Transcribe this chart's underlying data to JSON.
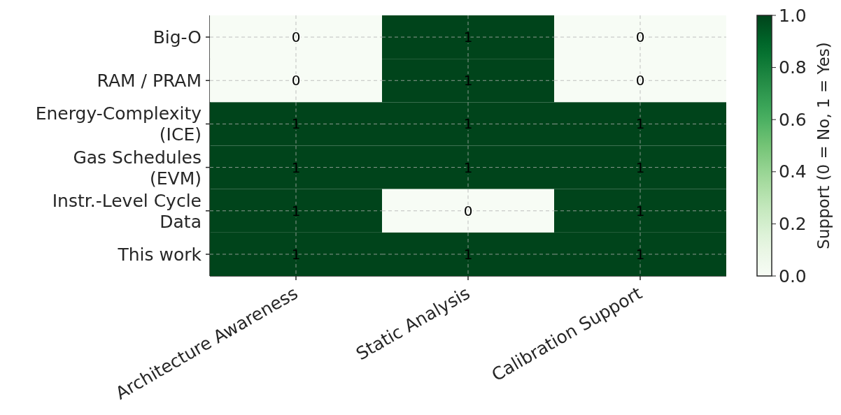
{
  "chart_data": {
    "type": "heatmap",
    "categories": [
      "Architecture Awareness",
      "Static Analysis",
      "Calibration Support"
    ],
    "y_categories": [
      "Big-O",
      "RAM / PRAM",
      "Energy-Complexity\n(ICE)",
      "Gas Schedules\n(EVM)",
      "Instr.-Level Cycle\nData",
      "This work"
    ],
    "cells": [
      [
        0,
        1,
        0
      ],
      [
        0,
        1,
        0
      ],
      [
        1,
        1,
        1
      ],
      [
        1,
        1,
        1
      ],
      [
        1,
        0,
        1
      ],
      [
        1,
        1,
        1
      ]
    ],
    "clim": [
      0,
      1
    ],
    "cticks": [
      {
        "value": 0,
        "label": "0.0"
      },
      {
        "value": 0.2,
        "label": "0.2"
      },
      {
        "value": 0.4,
        "label": "0.4"
      },
      {
        "value": 0.6,
        "label": "0.6"
      },
      {
        "value": 0.8,
        "label": "0.8"
      },
      {
        "value": 1,
        "label": "1.0"
      }
    ],
    "clabel": "Support (0 = No, 1 = Yes)",
    "data_labels": true,
    "grid": true
  }
}
